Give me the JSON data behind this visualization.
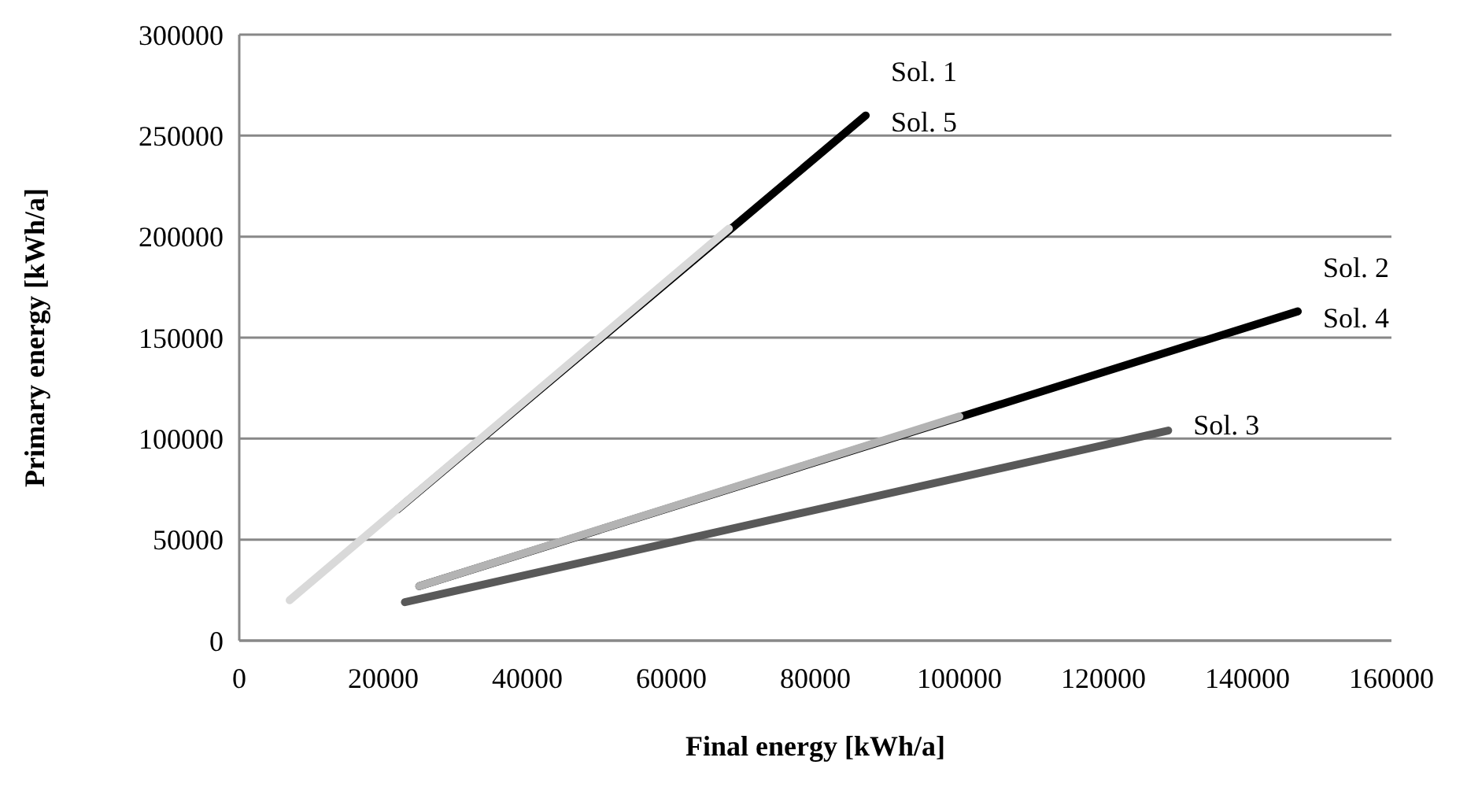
{
  "chart_data": {
    "type": "line",
    "xlabel": "Final energy [kWh/a]",
    "ylabel": "Primary energy [kWh/a]",
    "xlim": [
      0,
      160000
    ],
    "xticks": [
      0,
      20000,
      40000,
      60000,
      80000,
      100000,
      120000,
      140000,
      160000
    ],
    "ylim": [
      0,
      300000
    ],
    "yticks": [
      0,
      50000,
      100000,
      150000,
      200000,
      250000,
      300000
    ],
    "grid": "y",
    "marker": "none",
    "line_style": "solid",
    "series": [
      {
        "color": "#000000",
        "x": [
          22000,
          87000
        ],
        "values": [
          65000,
          260000
        ]
      },
      {
        "color": "#000000",
        "x": [
          25000,
          147000
        ],
        "values": [
          27000,
          163000
        ]
      },
      {
        "color": "#595959",
        "x": [
          23000,
          129000
        ],
        "values": [
          19000,
          104000
        ]
      },
      {
        "color": "#b3b3b3",
        "x": [
          25000,
          100000
        ],
        "values": [
          27000,
          111000
        ]
      },
      {
        "color": "#d9d9d9",
        "x": [
          7000,
          68000
        ],
        "values": [
          20000,
          204000
        ]
      }
    ],
    "annotations": [
      {
        "text": "Sol. 1",
        "x": 87000,
        "y": 260000
      },
      {
        "text": "Sol. 5",
        "x": 87000,
        "y": 260000
      },
      {
        "text": "Sol. 2",
        "x": 147000,
        "y": 163000
      },
      {
        "text": "Sol. 4",
        "x": 147000,
        "y": 163000
      },
      {
        "text": "Sol. 3",
        "x": 129000,
        "y": 104000
      }
    ]
  }
}
